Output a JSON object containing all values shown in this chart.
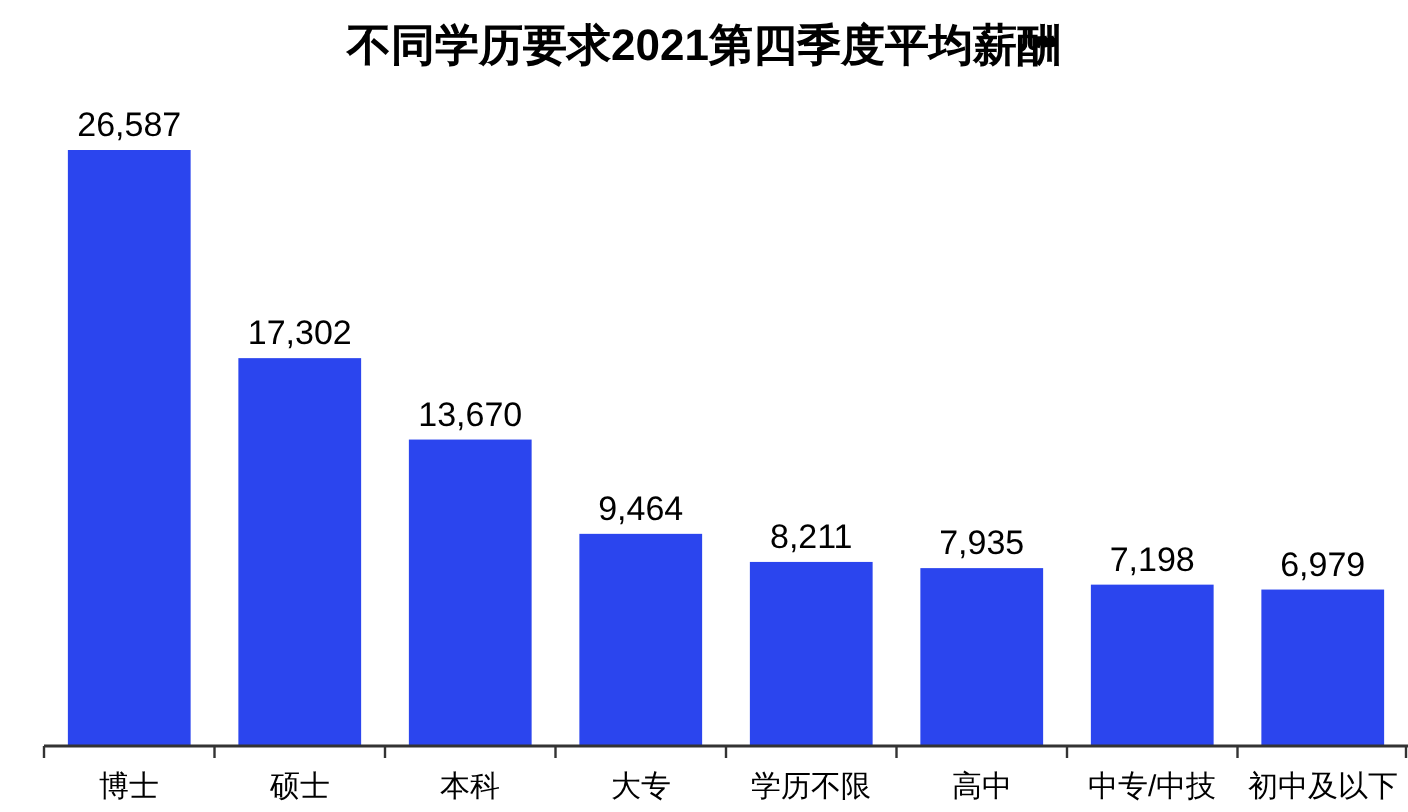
{
  "chart_data": {
    "type": "bar",
    "title": "不同学历要求2021第四季度平均薪酬",
    "categories": [
      "博士",
      "硕士",
      "本科",
      "大专",
      "学历不限",
      "高中",
      "中专/中技",
      "初中及以下"
    ],
    "values": [
      26587,
      17302,
      13670,
      9464,
      8211,
      7935,
      7198,
      6979
    ],
    "value_labels": [
      "26,587",
      "17,302",
      "13,670",
      "9,464",
      "8,211",
      "7,935",
      "7,198",
      "6,979"
    ],
    "color": "#2b45ee"
  }
}
